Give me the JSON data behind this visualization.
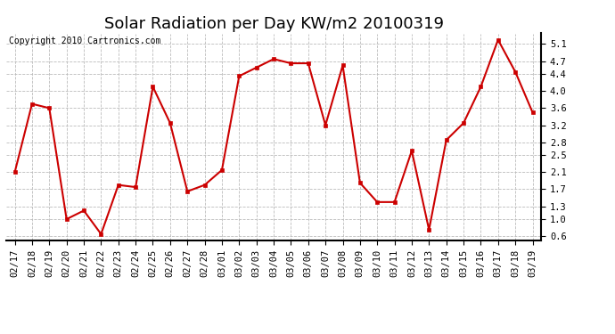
{
  "title": "Solar Radiation per Day KW/m2 20100319",
  "copyright": "Copyright 2010 Cartronics.com",
  "dates": [
    "02/17",
    "02/18",
    "02/19",
    "02/20",
    "02/21",
    "02/22",
    "02/23",
    "02/24",
    "02/25",
    "02/26",
    "02/27",
    "02/28",
    "03/01",
    "03/02",
    "03/03",
    "03/04",
    "03/05",
    "03/06",
    "03/07",
    "03/08",
    "03/09",
    "03/10",
    "03/11",
    "03/12",
    "03/13",
    "03/14",
    "03/15",
    "03/16",
    "03/17",
    "03/18",
    "03/19"
  ],
  "values": [
    2.1,
    3.7,
    3.6,
    1.0,
    1.2,
    0.65,
    1.8,
    1.75,
    4.1,
    3.25,
    1.65,
    1.8,
    2.15,
    4.35,
    4.55,
    4.75,
    4.65,
    4.65,
    3.2,
    4.6,
    1.85,
    1.4,
    1.4,
    2.6,
    0.75,
    2.85,
    3.25,
    4.1,
    5.2,
    4.45,
    3.5
  ],
  "line_color": "#cc0000",
  "marker": "s",
  "marker_size": 2.5,
  "bg_color": "#ffffff",
  "plot_bg_color": "#ffffff",
  "grid_color": "#bbbbbb",
  "grid_style": "--",
  "ylim": [
    0.5,
    5.35
  ],
  "yticks": [
    0.6,
    1.0,
    1.3,
    1.7,
    2.1,
    2.5,
    2.8,
    3.2,
    3.6,
    4.0,
    4.4,
    4.7,
    5.1
  ],
  "title_fontsize": 13,
  "copyright_fontsize": 7,
  "tick_fontsize": 7.5
}
